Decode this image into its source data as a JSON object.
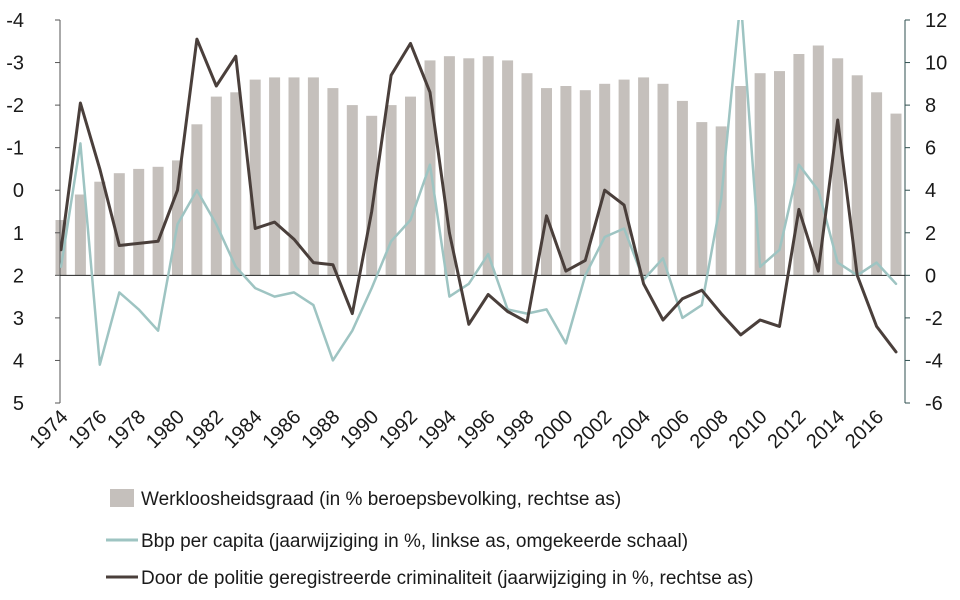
{
  "chart_data": {
    "type": "bar",
    "title": "",
    "years": [
      1974,
      1975,
      1976,
      1977,
      1978,
      1979,
      1980,
      1981,
      1982,
      1983,
      1984,
      1985,
      1986,
      1987,
      1988,
      1989,
      1990,
      1991,
      1992,
      1993,
      1994,
      1995,
      1996,
      1997,
      1998,
      1999,
      2000,
      2001,
      2002,
      2003,
      2004,
      2005,
      2006,
      2007,
      2008,
      2009,
      2010,
      2011,
      2012,
      2013,
      2014,
      2015,
      2016,
      2017
    ],
    "x_tick_labels": [
      "1974",
      "1976",
      "1978",
      "1980",
      "1982",
      "1984",
      "1986",
      "1988",
      "1990",
      "1992",
      "1994",
      "1996",
      "1998",
      "2000",
      "2002",
      "2004",
      "2006",
      "2008",
      "2010",
      "2012",
      "2014",
      "2016"
    ],
    "left_axis": {
      "ticks": [
        "-4",
        "-3",
        "-2",
        "-1",
        "0",
        "1",
        "2",
        "3",
        "4",
        "5"
      ],
      "ylim": [
        -4,
        5
      ],
      "reversed": true
    },
    "right_axis": {
      "ticks": [
        "12",
        "10",
        "8",
        "6",
        "4",
        "2",
        "0",
        "-2",
        "-4",
        "-6"
      ],
      "ylim": [
        -6,
        12
      ]
    },
    "series": [
      {
        "name": "Werkloosheidsgraad (in % beroepsbevolking, rechtse as)",
        "type": "bar",
        "axis": "right",
        "color": "#c5c0bc",
        "values": [
          2.6,
          3.8,
          4.4,
          4.8,
          5.0,
          5.1,
          5.4,
          7.1,
          8.4,
          8.6,
          9.2,
          9.3,
          9.3,
          9.3,
          8.8,
          8.0,
          7.5,
          8.0,
          8.4,
          10.1,
          10.3,
          10.2,
          10.3,
          10.1,
          9.5,
          8.8,
          8.9,
          8.7,
          9.0,
          9.2,
          9.3,
          9.0,
          8.2,
          7.2,
          7.0,
          8.9,
          9.5,
          9.6,
          10.4,
          10.8,
          10.2,
          9.4,
          8.6,
          7.6
        ]
      },
      {
        "name": "Bbp per capita (jaarwijziging in %, linkse as, omgekeerde schaal)",
        "type": "line",
        "axis": "left",
        "color": "#9ec4c2",
        "values": [
          1.8,
          -1.1,
          4.1,
          2.4,
          2.8,
          3.3,
          0.8,
          0.0,
          0.8,
          1.8,
          2.3,
          2.5,
          2.4,
          2.7,
          4.0,
          3.3,
          2.3,
          1.2,
          0.7,
          -0.6,
          2.5,
          2.2,
          1.5,
          2.8,
          2.9,
          2.8,
          3.6,
          2.0,
          1.1,
          0.9,
          2.1,
          1.6,
          3.0,
          2.7,
          0.2,
          -4.5,
          1.8,
          1.4,
          -0.6,
          0.0,
          1.7,
          2.0,
          1.7,
          2.2
        ]
      },
      {
        "name": "Door de politie geregistreerde criminaliteit (jaarwijziging in %, rechtse as)",
        "type": "line",
        "axis": "right",
        "color": "#4a3f3b",
        "values": [
          1.2,
          8.1,
          5.0,
          1.4,
          1.5,
          1.6,
          4.0,
          11.1,
          8.9,
          10.3,
          2.2,
          2.5,
          1.7,
          0.6,
          0.5,
          -1.8,
          3.0,
          9.4,
          10.9,
          8.6,
          2.0,
          -2.3,
          -0.9,
          -1.7,
          -2.2,
          2.8,
          0.2,
          0.7,
          4.0,
          3.3,
          -0.4,
          -2.1,
          -1.1,
          -0.7,
          -1.8,
          -2.8,
          -2.1,
          -2.4,
          3.1,
          0.2,
          7.3,
          0.0,
          -2.4,
          -3.6
        ]
      }
    ],
    "legend_position": "bottom",
    "grid": false
  }
}
